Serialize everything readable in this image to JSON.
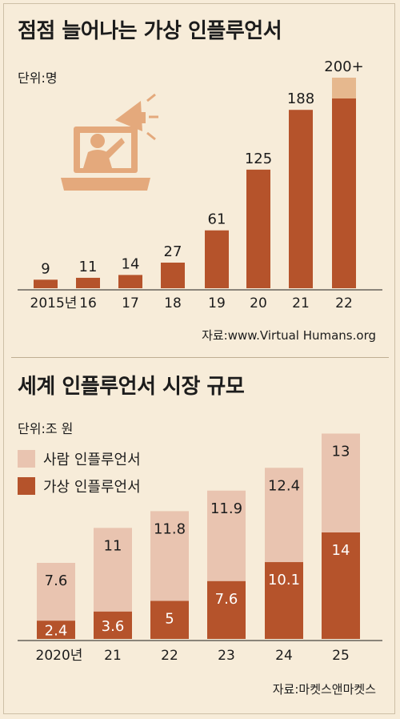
{
  "top": {
    "title": "점점 늘어나는 가상 인플루언서",
    "unit": "단위:명",
    "source": "자료:www.Virtual Humans.org",
    "icon": "influencer-laptop-megaphone-icon"
  },
  "bottom": {
    "title": "세계 인플루언서 시장 규모",
    "unit": "단위:조 원",
    "source": "자료:마켓스앤마켓스"
  },
  "colors": {
    "dark": "#b5532b",
    "light": "#e9c4b0",
    "accent_top": "#e6b88e",
    "background": "#f7ecd9"
  },
  "chart_data": [
    {
      "type": "bar",
      "title": "점점 늘어나는 가상 인플루언서",
      "unit": "단위:명",
      "categories": [
        "2015년",
        "16",
        "17",
        "18",
        "19",
        "20",
        "21",
        "22"
      ],
      "values": [
        9,
        11,
        14,
        27,
        61,
        125,
        188,
        200
      ],
      "value_labels": [
        "9",
        "11",
        "14",
        "27",
        "61",
        "125",
        "188",
        "200+"
      ],
      "ylim": [
        0,
        220
      ],
      "grid": false,
      "legend": "none"
    },
    {
      "type": "bar",
      "stacked": true,
      "title": "세계 인플루언서 시장 규모",
      "unit": "단위:조 원",
      "categories": [
        "2020년",
        "21",
        "22",
        "23",
        "24",
        "25"
      ],
      "series": [
        {
          "name": "가상 인플루언서",
          "values": [
            2.4,
            3.6,
            5,
            7.6,
            10.1,
            14
          ],
          "labels": [
            "2.4",
            "3.6",
            "5",
            "7.6",
            "10.1",
            "14"
          ]
        },
        {
          "name": "사람 인플루언서",
          "values": [
            7.6,
            11,
            11.8,
            11.9,
            12.4,
            13
          ],
          "labels": [
            "7.6",
            "11",
            "11.8",
            "11.9",
            "12.4",
            "13"
          ]
        }
      ],
      "ylim": [
        0,
        28
      ],
      "grid": false,
      "legend": "top-left"
    }
  ]
}
